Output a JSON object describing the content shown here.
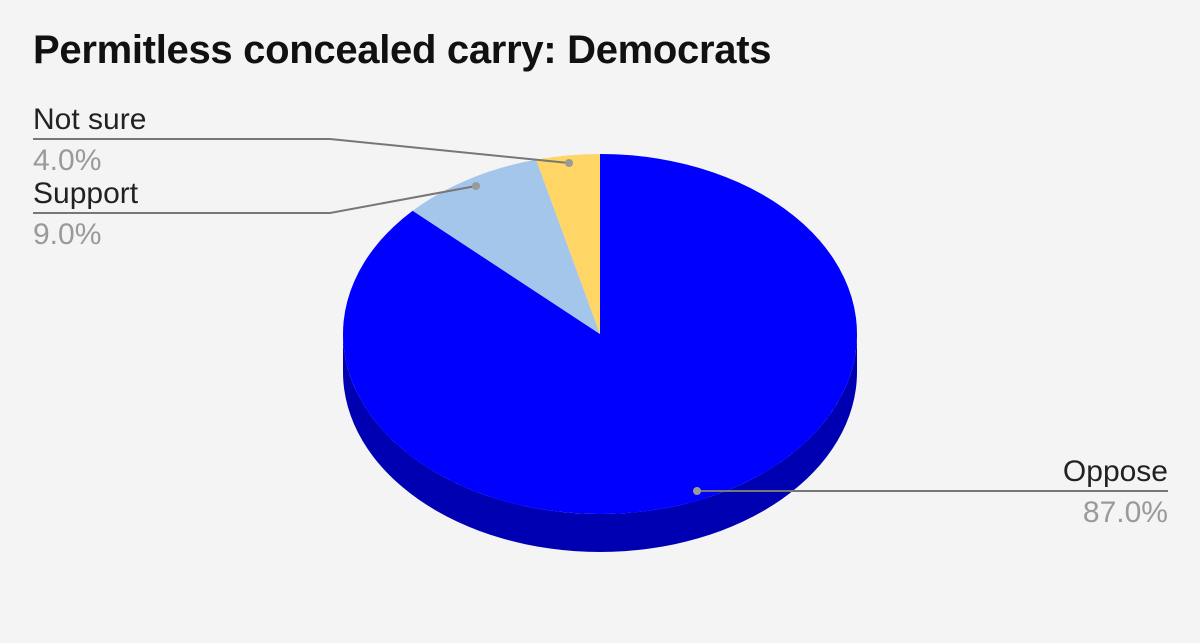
{
  "chart_data": {
    "type": "pie",
    "title": "Permitless concealed carry: Democrats",
    "categories": [
      "Oppose",
      "Support",
      "Not sure"
    ],
    "values": [
      87.0,
      9.0,
      4.0
    ],
    "value_labels": [
      "87.0%",
      "9.0%",
      "4.0%"
    ],
    "colors": [
      "#0000ff",
      "#a3c6ea",
      "#ffd666"
    ],
    "style": "3d"
  }
}
